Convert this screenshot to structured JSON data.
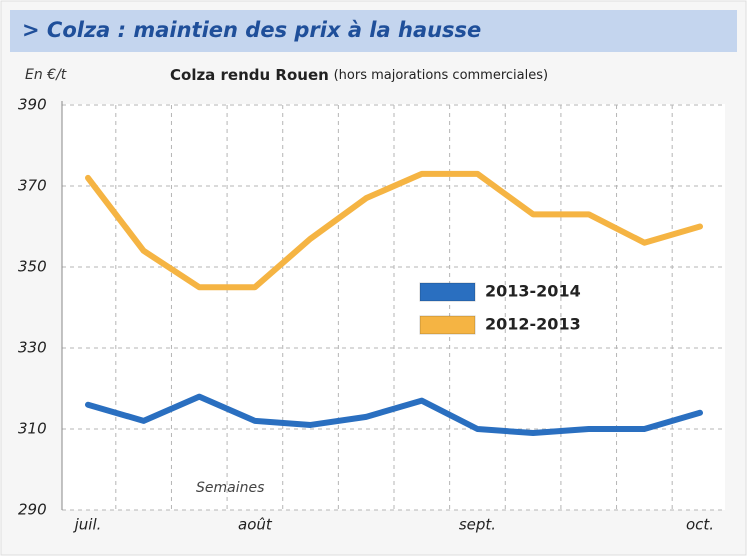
{
  "chart_data": {
    "type": "line",
    "title": "> Colza : maintien des prix à la hausse",
    "y_label": "En €/t",
    "chart_title": "Colza rendu Rouen",
    "subtitle": "(hors majorations commerciales)",
    "x_label": "Semaines",
    "categories": [
      "juil.",
      null,
      null,
      "août",
      null,
      null,
      null,
      "sept.",
      null,
      null,
      null,
      "oct."
    ],
    "series": [
      {
        "name": "2013-2014",
        "color": "#2a6fc0",
        "values": [
          316,
          312,
          318,
          312,
          311,
          313,
          317,
          310,
          309,
          310,
          310,
          314
        ]
      },
      {
        "name": "2012-2013",
        "color": "#f5b443",
        "values": [
          372,
          354,
          345,
          345,
          357,
          367,
          373,
          373,
          363,
          363,
          356,
          360
        ]
      }
    ],
    "ylim": [
      290,
      390
    ],
    "yticks": [
      290,
      310,
      330,
      350,
      370,
      390
    ],
    "grid": true
  }
}
